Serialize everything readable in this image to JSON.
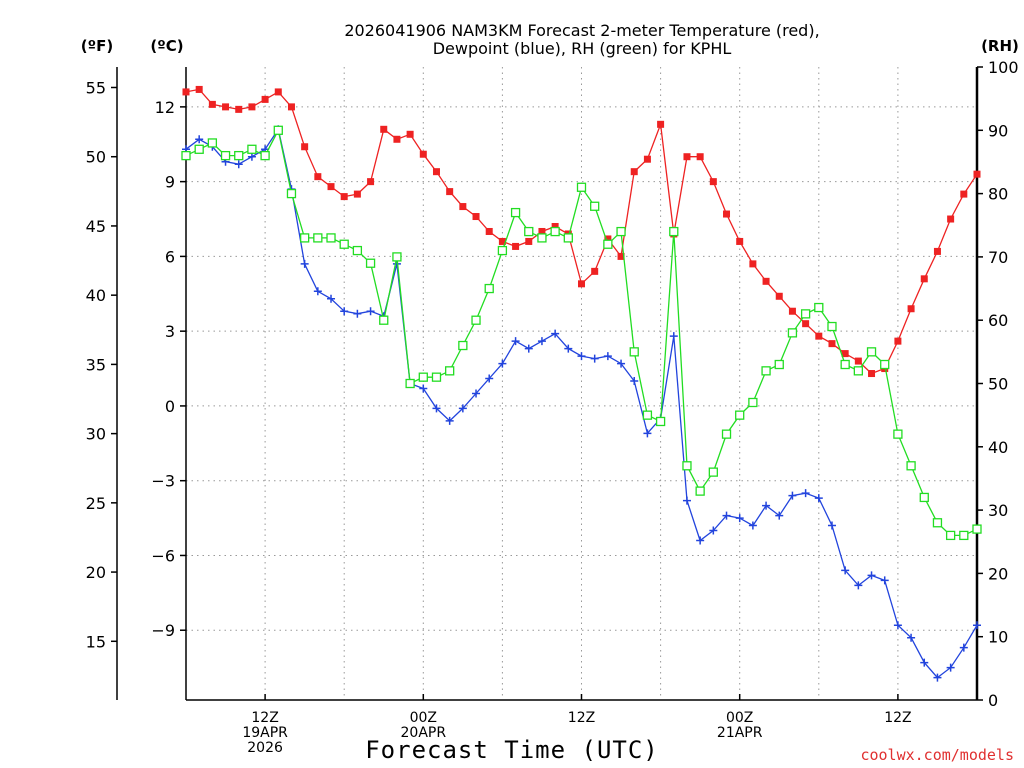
{
  "chart_data": {
    "type": "line",
    "title_line1": "2026041906 NAM3KM Forecast 2-meter Temperature (red),",
    "title_line2": "Dewpoint (blue), RH (green) for KPHL",
    "xlabel": "Forecast Time (UTC)",
    "credit": "coolwx.com/models",
    "unit_f": "(ºF)",
    "unit_c": "(ºC)",
    "unit_rh": "(RH)",
    "x_start_hour": 6,
    "x_end_hour": 66,
    "xlim_hours": [
      6,
      66
    ],
    "ylim_celsius": [
      -11.8,
      13.6
    ],
    "ylim_rh": [
      0,
      100
    ],
    "ylim_fahrenheit": [
      10.76,
      56.48
    ],
    "celsius_ticks": [
      "12",
      "9",
      "6",
      "3",
      "0",
      "−3",
      "−6",
      "−9"
    ],
    "celsius_tick_values": [
      12,
      9,
      6,
      3,
      0,
      -3,
      -6,
      -9
    ],
    "fahrenheit_ticks": [
      "55",
      "50",
      "45",
      "40",
      "35",
      "30",
      "25",
      "20",
      "15"
    ],
    "fahrenheit_tick_values": [
      55,
      50,
      45,
      40,
      35,
      30,
      25,
      20,
      15
    ],
    "rh_ticks": [
      "100",
      "90",
      "80",
      "70",
      "60",
      "50",
      "40",
      "30",
      "20",
      "10",
      "0"
    ],
    "rh_tick_values": [
      100,
      90,
      80,
      70,
      60,
      50,
      40,
      30,
      20,
      10,
      0
    ],
    "x_ticks": [
      {
        "hour": 12,
        "lines": [
          "12Z",
          "19APR",
          "2026"
        ]
      },
      {
        "hour": 24,
        "lines": [
          "00Z",
          "20APR"
        ]
      },
      {
        "hour": 36,
        "lines": [
          "12Z"
        ]
      },
      {
        "hour": 48,
        "lines": [
          "00Z",
          "21APR"
        ]
      },
      {
        "hour": 60,
        "lines": [
          "12Z"
        ]
      }
    ],
    "series": [
      {
        "name": "2-meter Temperature",
        "unit": "C",
        "color": "#ee2222",
        "marker": "filled-square",
        "values": [
          12.6,
          12.7,
          12.1,
          12.0,
          11.9,
          12.0,
          12.3,
          12.6,
          12.0,
          10.4,
          9.2,
          8.8,
          8.4,
          8.5,
          9.0,
          11.1,
          10.7,
          10.9,
          10.1,
          9.4,
          8.6,
          8.0,
          7.6,
          7.0,
          6.6,
          6.4,
          6.6,
          7.0,
          7.2,
          6.9,
          4.9,
          5.4,
          6.7,
          6.0,
          9.4,
          9.9,
          11.3,
          6.9,
          10.0,
          10.0,
          9.0,
          7.7,
          6.6,
          5.7,
          5.0,
          4.4,
          3.8,
          3.3,
          2.8,
          2.5,
          2.1,
          1.8,
          1.3,
          1.5,
          2.6,
          3.9,
          5.1,
          6.2,
          7.5,
          8.5,
          9.3
        ]
      },
      {
        "name": "Dewpoint",
        "unit": "C",
        "color": "#2244dd",
        "marker": "plus",
        "values": [
          10.3,
          10.7,
          10.4,
          9.8,
          9.7,
          10.0,
          10.3,
          11.1,
          8.7,
          5.7,
          4.6,
          4.3,
          3.8,
          3.7,
          3.8,
          3.6,
          5.7,
          0.9,
          0.7,
          -0.1,
          -0.6,
          -0.1,
          0.5,
          1.1,
          1.7,
          2.6,
          2.3,
          2.6,
          2.9,
          2.3,
          2.0,
          1.9,
          2.0,
          1.7,
          1.0,
          -1.1,
          -0.5,
          2.8,
          -3.8,
          -5.4,
          -5.0,
          -4.4,
          -4.5,
          -4.8,
          -4.0,
          -4.4,
          -3.6,
          -3.5,
          -3.7,
          -4.8,
          -6.6,
          -7.2,
          -6.8,
          -7.0,
          -8.8,
          -9.3,
          -10.3,
          -10.9,
          -10.5,
          -9.7,
          -8.8
        ]
      },
      {
        "name": "RH",
        "unit": "%",
        "color": "#22dd22",
        "marker": "open-square",
        "values": [
          86,
          87,
          88,
          86,
          86,
          87,
          86,
          90,
          80,
          73,
          73,
          73,
          72,
          71,
          69,
          60,
          70,
          50,
          51,
          51,
          52,
          56,
          60,
          65,
          71,
          77,
          74,
          73,
          74,
          73,
          81,
          78,
          72,
          74,
          55,
          45,
          44,
          74,
          37,
          33,
          36,
          42,
          45,
          47,
          52,
          53,
          58,
          61,
          62,
          59,
          53,
          52,
          55,
          53,
          42,
          37,
          32,
          28,
          26,
          26,
          27
        ]
      }
    ]
  }
}
